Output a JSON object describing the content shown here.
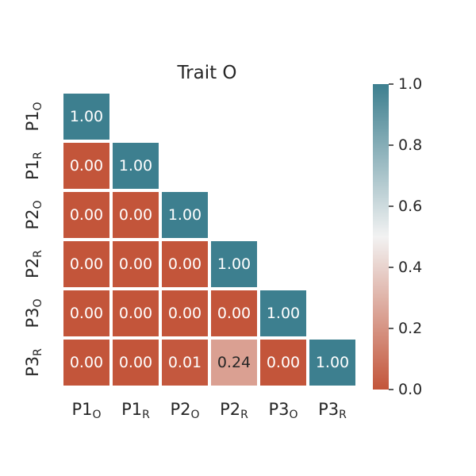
{
  "chart_data": {
    "type": "heatmap",
    "title": "Trait O",
    "triangular": "lower",
    "labels": [
      {
        "base": "P1",
        "sub": "O"
      },
      {
        "base": "P1",
        "sub": "R"
      },
      {
        "base": "P2",
        "sub": "O"
      },
      {
        "base": "P2",
        "sub": "R"
      },
      {
        "base": "P3",
        "sub": "O"
      },
      {
        "base": "P3",
        "sub": "R"
      }
    ],
    "matrix": [
      [
        1.0
      ],
      [
        0.0,
        1.0
      ],
      [
        0.0,
        0.0,
        1.0
      ],
      [
        0.0,
        0.0,
        0.0,
        1.0
      ],
      [
        0.0,
        0.0,
        0.0,
        0.0,
        1.0
      ],
      [
        0.0,
        0.0,
        0.01,
        0.24,
        0.0,
        1.0
      ]
    ],
    "cell_labels": [
      [
        "1.00"
      ],
      [
        "0.00",
        "1.00"
      ],
      [
        "0.00",
        "0.00",
        "1.00"
      ],
      [
        "0.00",
        "0.00",
        "0.00",
        "1.00"
      ],
      [
        "0.00",
        "0.00",
        "0.00",
        "0.00",
        "1.00"
      ],
      [
        "0.00",
        "0.00",
        "0.01",
        "0.24",
        "0.00",
        "1.00"
      ]
    ],
    "colorbar": {
      "min": 0.0,
      "max": 1.0,
      "ticks": [
        "0.0",
        "0.2",
        "0.4",
        "0.6",
        "0.8",
        "1.0"
      ],
      "low_color": "#c3553a",
      "mid_color": "#f2f2f2",
      "high_color": "#3d7f8f"
    },
    "legend_placement": "right",
    "grid": false
  }
}
